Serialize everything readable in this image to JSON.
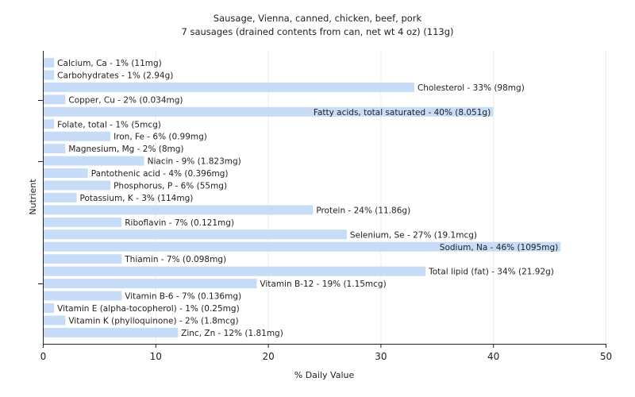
{
  "chart_data": {
    "type": "bar",
    "orientation": "horizontal",
    "title": "Sausage, Vienna, canned, chicken, beef, pork",
    "subtitle": "7 sausages (drained contents from can, net wt 4 oz) (113g)",
    "xlabel": "% Daily Value",
    "ylabel": "Nutrient",
    "xlim": [
      0,
      50
    ],
    "xticks": [
      0,
      10,
      20,
      30,
      40,
      50
    ],
    "grid": true,
    "bar_color": "#c6dcf7",
    "bars": [
      {
        "value": 1,
        "label": "Calcium, Ca - 1% (11mg)"
      },
      {
        "value": 1,
        "label": "Carbohydrates - 1% (2.94g)"
      },
      {
        "value": 33,
        "label": "Cholesterol - 33% (98mg)"
      },
      {
        "value": 2,
        "label": "Copper, Cu - 2% (0.034mg)"
      },
      {
        "value": 40,
        "label": "Fatty acids, total saturated - 40% (8.051g)"
      },
      {
        "value": 1,
        "label": "Folate, total - 1% (5mcg)"
      },
      {
        "value": 6,
        "label": "Iron, Fe - 6% (0.99mg)"
      },
      {
        "value": 2,
        "label": "Magnesium, Mg - 2% (8mg)"
      },
      {
        "value": 9,
        "label": "Niacin - 9% (1.823mg)"
      },
      {
        "value": 4,
        "label": "Pantothenic acid - 4% (0.396mg)"
      },
      {
        "value": 6,
        "label": "Phosphorus, P - 6% (55mg)"
      },
      {
        "value": 3,
        "label": "Potassium, K - 3% (114mg)"
      },
      {
        "value": 24,
        "label": "Protein - 24% (11.86g)"
      },
      {
        "value": 7,
        "label": "Riboflavin - 7% (0.121mg)"
      },
      {
        "value": 27,
        "label": "Selenium, Se - 27% (19.1mcg)"
      },
      {
        "value": 46,
        "label": "Sodium, Na - 46% (1095mg)"
      },
      {
        "value": 7,
        "label": "Thiamin - 7% (0.098mg)"
      },
      {
        "value": 34,
        "label": "Total lipid (fat) - 34% (21.92g)"
      },
      {
        "value": 19,
        "label": "Vitamin B-12 - 19% (1.15mcg)"
      },
      {
        "value": 7,
        "label": "Vitamin B-6 - 7% (0.136mg)"
      },
      {
        "value": 1,
        "label": "Vitamin E (alpha-tocopherol) - 1% (0.25mg)"
      },
      {
        "value": 2,
        "label": "Vitamin K (phylloquinone) - 2% (1.8mcg)"
      },
      {
        "value": 12,
        "label": "Zinc, Zn - 12% (1.81mg)"
      }
    ]
  }
}
